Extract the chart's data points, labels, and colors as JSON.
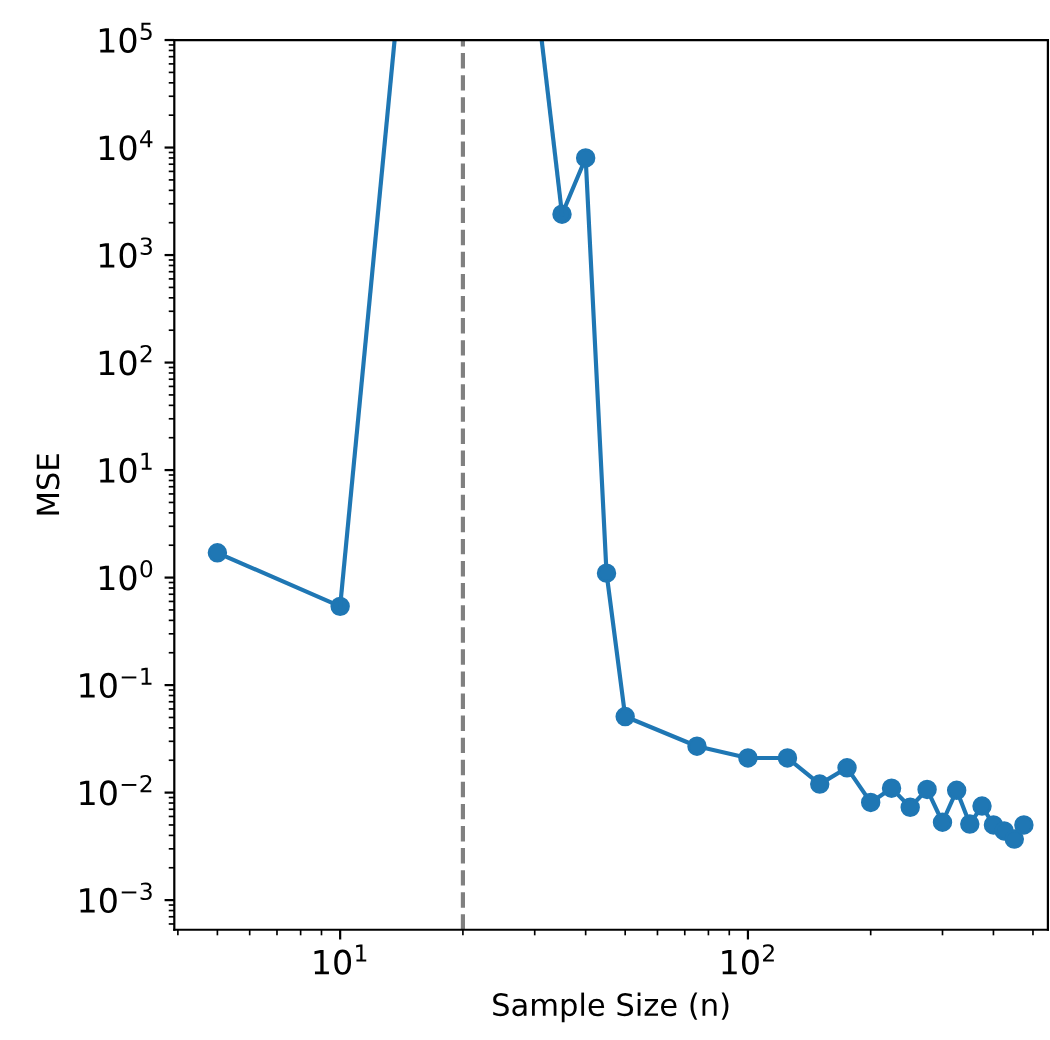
{
  "chart_data": {
    "type": "line",
    "xlabel": "Sample Size (n)",
    "ylabel": "MSE",
    "log": "xy",
    "marker": "circle",
    "line_style": "solid",
    "grid": false,
    "legend": false,
    "x": [
      5,
      10,
      15,
      20,
      25,
      30,
      35,
      40,
      45,
      50,
      75,
      100,
      125,
      150,
      175,
      200,
      225,
      250,
      275,
      300,
      325,
      350,
      375,
      400,
      425,
      450,
      475
    ],
    "series": [
      {
        "color": "#1f77b4",
        "values": [
          1.7,
          0.54,
          null,
          null,
          null,
          null,
          2400,
          8000,
          1.1,
          0.051,
          0.027,
          0.021,
          0.021,
          0.012,
          0.017,
          0.0081,
          0.011,
          0.0073,
          0.0107,
          0.0053,
          0.0105,
          0.0051,
          0.0075,
          0.005,
          0.0044,
          0.0037,
          0.005
        ]
      },
      {
        "color": "#1f77b4",
        "marker": "none",
        "x": [
          10,
          13.6
        ],
        "values": [
          0.54,
          100000
        ]
      },
      {
        "color": "#1f77b4",
        "marker": "none",
        "x": [
          31.2,
          35
        ],
        "values": [
          100000,
          2400
        ]
      }
    ],
    "xlim": [
      3.92,
      544
    ],
    "ylim": [
      0.00053,
      100000
    ],
    "xticks": [
      {
        "value": 10,
        "label": "10$^{1}$"
      },
      {
        "value": 100,
        "label": "10$^{2}$"
      }
    ],
    "yticks": [
      {
        "value": 0.001,
        "label": "10$^{−3}$"
      },
      {
        "value": 0.01,
        "label": "10$^{−2}$"
      },
      {
        "value": 0.1,
        "label": "10$^{−1}$"
      },
      {
        "value": 1,
        "label": "10$^{0}$"
      },
      {
        "value": 10,
        "label": "10$^{1}$"
      },
      {
        "value": 100,
        "label": "10$^{2}$"
      },
      {
        "value": 1000,
        "label": "10$^{3}$"
      },
      {
        "value": 10000,
        "label": "10$^{4}$"
      },
      {
        "value": 100000,
        "label": "10$^{5}$"
      }
    ],
    "ref_lines": [
      {
        "axis": "x",
        "value": 20,
        "color": "#808080",
        "line_style": "dashed"
      }
    ]
  }
}
